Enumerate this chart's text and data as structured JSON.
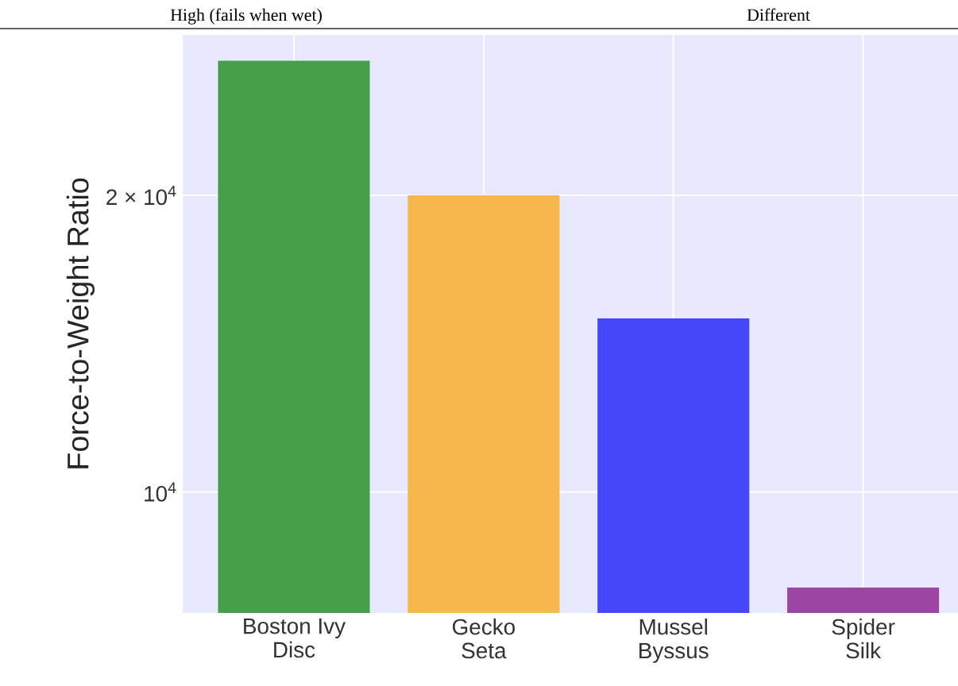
{
  "chart_data": {
    "type": "bar",
    "ylabel": "Force-to-Weight Ratio",
    "categories": [
      "Boston Ivy\nDisc",
      "Gecko\nSeta",
      "Mussel\nByssus",
      "Spider\nSilk"
    ],
    "values": [
      27400,
      20000,
      15000,
      8000
    ],
    "colors": [
      "#46a049",
      "#f6b84a",
      "#4747fa",
      "#9c45a3"
    ],
    "log": "y",
    "ylim": [
      7540,
      29100
    ],
    "yticks": [
      {
        "value": 10000,
        "label": "10$^{4}$"
      },
      {
        "value": 20000,
        "label": "2 × 10$^{4}$"
      }
    ],
    "grid": true,
    "annotations": [
      "High (fails when wet)",
      "Different"
    ]
  }
}
